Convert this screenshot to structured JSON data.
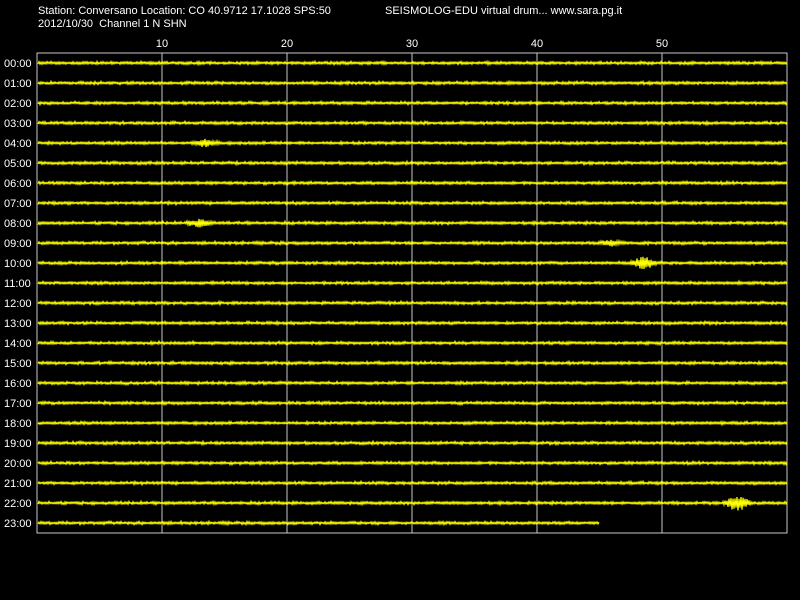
{
  "header": {
    "station_line": "Station: Conversano Location: CO 40.9712 17.1028 SPS:50",
    "date_line": "2012/10/30  Channel 1 N SHN",
    "software": "SEISMOLOG-EDU virtual drum... www.sara.pg.it"
  },
  "chart_data": {
    "type": "line",
    "x_ticks": [
      "10",
      "20",
      "30",
      "40",
      "50"
    ],
    "x_range": [
      0,
      60
    ],
    "rows": [
      "00:00",
      "01:00",
      "02:00",
      "03:00",
      "04:00",
      "05:00",
      "06:00",
      "07:00",
      "08:00",
      "09:00",
      "10:00",
      "11:00",
      "12:00",
      "13:00",
      "14:00",
      "15:00",
      "16:00",
      "17:00",
      "18:00",
      "19:00",
      "20:00",
      "21:00",
      "22:00",
      "23:00"
    ],
    "last_row_end_minute": 45,
    "events": [
      {
        "row": "04:00",
        "minute": 13.5,
        "amplitude": 1.6
      },
      {
        "row": "08:00",
        "minute": 13,
        "amplitude": 1.8
      },
      {
        "row": "09:00",
        "minute": 46,
        "amplitude": 1.4
      },
      {
        "row": "10:00",
        "minute": 48.5,
        "amplitude": 3.2
      },
      {
        "row": "22:00",
        "minute": 56,
        "amplitude": 4.0
      }
    ],
    "grid": true,
    "trace_color": "#ffff00",
    "grid_color": "#c8c8c8",
    "background_color": "#000000"
  }
}
